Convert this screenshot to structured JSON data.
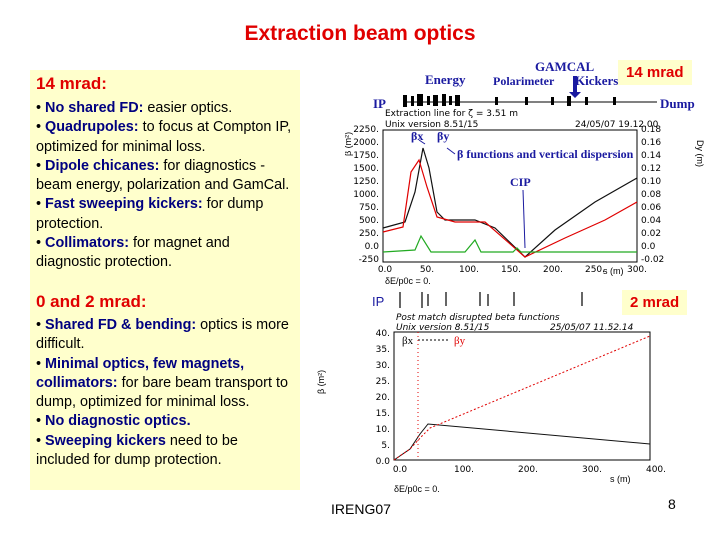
{
  "slide": {
    "title": "Extraction beam optics",
    "footer": "IRENG07",
    "page_number": "8"
  },
  "left": {
    "heading1": "14 mrad:",
    "bullets1": [
      {
        "bold": "No shared FD:",
        "text": " easier optics."
      },
      {
        "bold": "Quadrupoles:",
        "text": " to focus at Compton IP, optimized for minimal loss."
      },
      {
        "bold": "Dipole chicanes:",
        "text": " for diagnostics - beam energy, polarization and GamCal."
      },
      {
        "bold": "Fast sweeping kickers:",
        "text": " for dump protection."
      },
      {
        "bold": "Collimators:",
        "text": " for magnet and diagnostic protection."
      }
    ],
    "heading2": "0 and 2 mrad:",
    "bullets2": [
      {
        "bold": "Shared FD & bending:",
        "text": " optics is more difficult."
      },
      {
        "bold": "Minimal optics, few magnets, collimators:",
        "text": " for bare beam transport to dump, optimized for minimal loss."
      },
      {
        "bold": "No diagnostic optics.",
        "text": ""
      },
      {
        "bold": "Sweeping kickers",
        "text": " need to be included for dump protection."
      }
    ]
  },
  "top_figure": {
    "badge": "14 mrad",
    "labels": {
      "energy": "Energy",
      "gamcal": "GAMCAL",
      "polarimeter": "Polarimeter",
      "kickers": "Kickers",
      "ip": "IP",
      "dump": "Dump",
      "header": "Extraction line for ζ = 3.51 m",
      "version": "Unix version 8.51/15",
      "date": "24/05/07  19.12.00",
      "legend_bx": "βx",
      "legend_by": "βy",
      "legend_text": "β functions and vertical dispersion",
      "cip": "CIP",
      "yaxis": "β (m²)",
      "y2axis": "Dy (m)",
      "xaxis": "s (m)",
      "bottom_note": "δE/p0c = 0."
    },
    "y_ticks": [
      "2250.",
      "2000.",
      "1750.",
      "1500.",
      "1250.",
      "1000.",
      "750.",
      "500.",
      "250.",
      "0.0",
      "-250"
    ],
    "y2_ticks": [
      "0.18",
      "0.16",
      "0.14",
      "0.12",
      "0.10",
      "0.08",
      "0.06",
      "0.04",
      "0.02",
      "0.0",
      "-0.02"
    ],
    "x_ticks": [
      "0.0",
      "50.",
      "100.",
      "150.",
      "200.",
      "250.",
      "300."
    ]
  },
  "bottom_figure": {
    "badge": "2 mrad",
    "labels": {
      "ip": "IP",
      "header": "Post match disrupted beta functions",
      "version": "Unix version 8.51/15",
      "date": "25/05/07  11.52.14",
      "legend_bx": "βx",
      "legend_by": "βy",
      "yaxis": "β (m²)",
      "xaxis": "s (m)",
      "bottom_note": "δE/p0c = 0."
    },
    "y_ticks": [
      "40.",
      "35.",
      "30.",
      "25.",
      "20.",
      "15.",
      "10.",
      "5.",
      "0.0"
    ],
    "x_ticks": [
      "0.0",
      "100.",
      "200.",
      "300.",
      "400."
    ]
  },
  "colors": {
    "title": "#e00000",
    "highlight_box": "#ffffcc",
    "bold_text": "#000080",
    "label_blue": "#1a1aa0",
    "beta_x": "#111111",
    "beta_y": "#e00000",
    "dispersion": "#22aa22"
  }
}
